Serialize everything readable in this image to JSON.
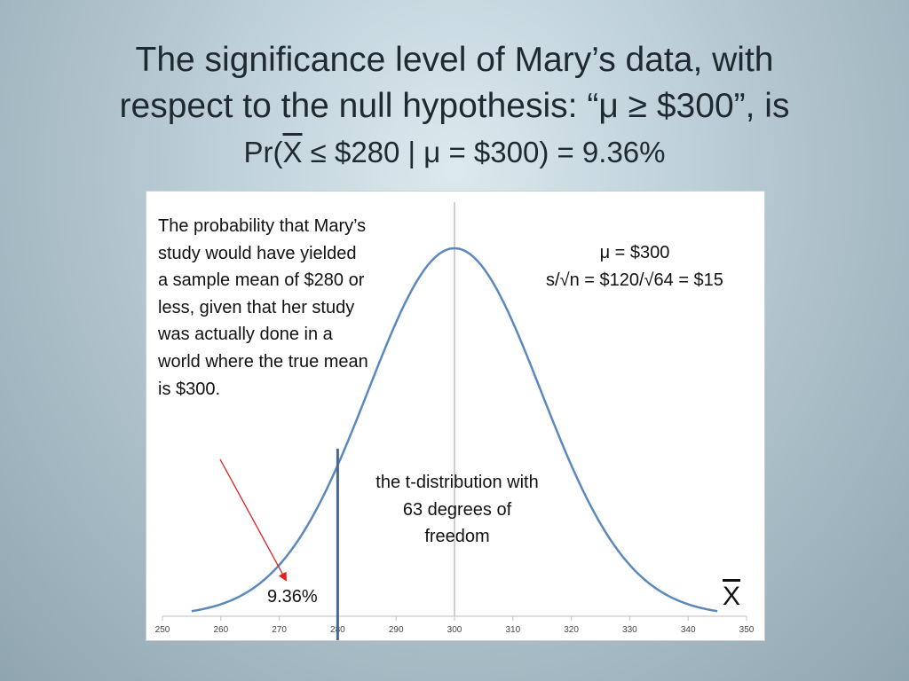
{
  "title": {
    "line1": "The significance level of Mary’s data, with",
    "line2": "respect to the null hypothesis: “μ ≥ $300”, is",
    "formula_pre": "Pr(",
    "formula_x": "X",
    "formula_post": " ≤ $280 | μ = $300) = 9.36%"
  },
  "annotations": {
    "probability_note": "The probability that Mary’s study would have yielded a sample mean of $280 or less, given that her study was actually done in a world where the true mean is $300.",
    "mean_label": "μ = $300",
    "se_label": "s/√n = $120/√64 = $15",
    "distribution_note": "the t-distribution with 63 degrees of freedom",
    "tail_percent": "9.36%",
    "x_axis_symbol": "X"
  },
  "colors": {
    "curve": "#5b89bd",
    "cutoff_line": "#4b6690",
    "mean_line": "#d0d0d0",
    "arrow": "#e02020",
    "axis": "#bfbfbf"
  },
  "chart_data": {
    "type": "line",
    "distribution": "t",
    "df": 63,
    "mean": 300,
    "standard_error": 15,
    "cutoff": 280,
    "tail_probability_percent": 9.36,
    "xlim": [
      250,
      350
    ],
    "x_range_plotted": [
      255,
      345
    ],
    "x_ticks": [
      250,
      260,
      270,
      280,
      290,
      300,
      310,
      320,
      330,
      340,
      350
    ],
    "grid": false,
    "title": "",
    "xlabel": "",
    "ylabel": ""
  }
}
